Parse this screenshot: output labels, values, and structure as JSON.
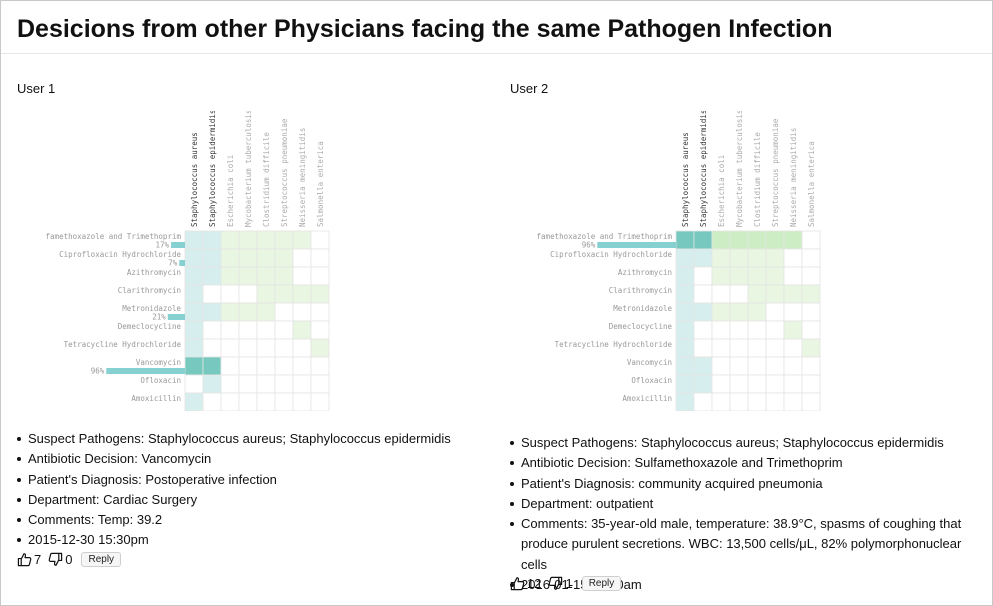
{
  "page": {
    "title": "Desicions from other Physicians facing the same Pathogen Infection"
  },
  "pathogens": [
    "Staphylococcus aureus",
    "Staphylococcus epidermidis",
    "Escherichia coli",
    "Mycobacterium tuberculosis",
    "Clostridium difficile",
    "Streptococcus pneumoniae",
    "Neisseria meningitidis",
    "Salmonella enterica"
  ],
  "antibiotics": [
    "Sulfamethoxazole and Trimethoprim",
    "Ciprofloxacin Hydrochloride",
    "Azithromycin",
    "Clarithromycin",
    "Metronidazole",
    "Demeclocycline",
    "Tetracycline Hydrochloride",
    "Vancomycin",
    "Ofloxacin",
    "Amoxicillin"
  ],
  "colors": {
    "grid_line": "#e4e4e4",
    "teal_light": "#d6efee",
    "teal_mid": "#a6dcd7",
    "teal_dark": "#77c9bf",
    "green_light": "#e9f6e2",
    "green_mid": "#cdeec4",
    "bar": "#86d0d2"
  },
  "users": [
    {
      "label": "User 1",
      "highlight_pathogens": [
        0,
        1
      ],
      "bars": [
        {
          "row": 0,
          "percent": 17,
          "label": "17%"
        },
        {
          "row": 1,
          "percent": 7,
          "label": "7%"
        },
        {
          "row": 4,
          "percent": 21,
          "label": "21%"
        },
        {
          "row": 7,
          "percent": 96,
          "label": "96%"
        }
      ],
      "cells": [
        [
          1,
          1,
          2,
          2,
          2,
          2,
          2,
          0
        ],
        [
          1,
          1,
          2,
          2,
          2,
          2,
          0,
          0
        ],
        [
          1,
          1,
          2,
          2,
          2,
          2,
          0,
          0
        ],
        [
          1,
          0,
          0,
          0,
          2,
          2,
          2,
          2
        ],
        [
          1,
          1,
          2,
          2,
          2,
          0,
          0,
          0
        ],
        [
          1,
          0,
          0,
          0,
          0,
          0,
          2,
          0
        ],
        [
          1,
          0,
          0,
          0,
          0,
          0,
          0,
          2
        ],
        [
          3,
          3,
          0,
          0,
          0,
          0,
          0,
          0
        ],
        [
          0,
          1,
          0,
          0,
          0,
          0,
          0,
          0
        ],
        [
          1,
          0,
          0,
          0,
          0,
          0,
          0,
          0
        ]
      ],
      "info": {
        "pathogens": "Suspect Pathogens: Staphylococcus aureus; Staphylococcus epidermidis",
        "decision": "Antibiotic Decision: Vancomycin",
        "diagnosis": "Patient's Diagnosis: Postoperative infection",
        "department": "Department: Cardiac Surgery",
        "comments": "Comments: Temp: 39.2",
        "timestamp": "2015-12-30 15:30pm"
      },
      "likes": "7",
      "dislikes": "0",
      "reply_label": "Reply"
    },
    {
      "label": "User 2",
      "highlight_pathogens": [
        0,
        1
      ],
      "bars": [
        {
          "row": 0,
          "percent": 96,
          "label": "96%"
        }
      ],
      "cells": [
        [
          3,
          3,
          4,
          4,
          4,
          4,
          4,
          0
        ],
        [
          1,
          1,
          2,
          2,
          2,
          2,
          0,
          0
        ],
        [
          1,
          0,
          2,
          2,
          2,
          2,
          0,
          0
        ],
        [
          1,
          0,
          0,
          0,
          2,
          2,
          2,
          2
        ],
        [
          1,
          1,
          2,
          2,
          2,
          0,
          0,
          0
        ],
        [
          1,
          0,
          0,
          0,
          0,
          0,
          2,
          0
        ],
        [
          1,
          0,
          0,
          0,
          0,
          0,
          0,
          2
        ],
        [
          1,
          1,
          0,
          0,
          0,
          0,
          0,
          0
        ],
        [
          1,
          1,
          0,
          0,
          0,
          0,
          0,
          0
        ],
        [
          1,
          0,
          0,
          0,
          0,
          0,
          0,
          0
        ]
      ],
      "info": {
        "pathogens": "Suspect Pathogens: Staphylococcus aureus; Staphylococcus epidermidis",
        "decision": "Antibiotic Decision: Sulfamethoxazole and Trimethoprim",
        "diagnosis": "Patient's Diagnosis: community acquired pneumonia",
        "department": "Department: outpatient",
        "comments": "Comments: 35-year-old male, temperature: 38.9°C, spasms of coughing that produce purulent secretions. WBC: 13,500 cells/μL, 82% polymorphonuclear cells",
        "timestamp": "2016-01-15 09:20am"
      },
      "likes": "12",
      "dislikes": "1",
      "reply_label": "Reply"
    }
  ]
}
